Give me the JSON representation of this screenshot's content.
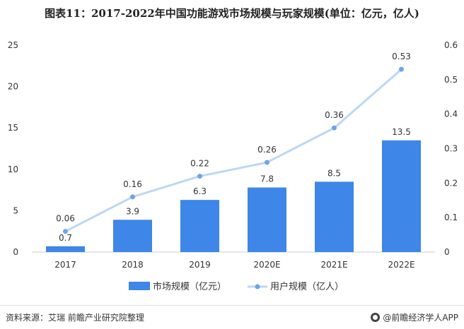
{
  "title": "图表11：2017-2022年中国功能游戏市场规模与玩家规模(单位：亿元，亿人)",
  "chart_data": {
    "type": "bar",
    "categories": [
      "2017",
      "2018",
      "2019",
      "2020E",
      "2021E",
      "2022E"
    ],
    "series": [
      {
        "name": "市场规模（亿元）",
        "type": "bar",
        "axis": "left",
        "values": [
          0.7,
          3.9,
          6.3,
          7.8,
          8.5,
          13.5
        ],
        "labels": [
          "0.7",
          "3.9",
          "6.3",
          "7.8",
          "8.5",
          "13.5"
        ],
        "color": "#3E86E8"
      },
      {
        "name": "用户规模（亿人）",
        "type": "line",
        "axis": "right",
        "values": [
          0.06,
          0.16,
          0.22,
          0.26,
          0.36,
          0.53
        ],
        "labels": [
          "0.06",
          "0.16",
          "0.22",
          "0.26",
          "0.36",
          "0.53"
        ],
        "color": "#BDD7F3",
        "marker_color": "#6EA4E6"
      }
    ],
    "y_left": {
      "ylim": [
        0,
        25
      ],
      "ticks": [
        "0",
        "5",
        "10",
        "15",
        "20",
        "25"
      ]
    },
    "y_right": {
      "ylim": [
        0,
        0.6
      ],
      "ticks": [
        "0",
        "0.1",
        "0.2",
        "0.3",
        "0.4",
        "0.5",
        "0.6"
      ]
    },
    "grid": false,
    "legend": "bottom"
  },
  "footer": {
    "source": "资料来源：艾瑞 前瞻产业研究院整理",
    "brand": "@前瞻经济学人APP"
  }
}
